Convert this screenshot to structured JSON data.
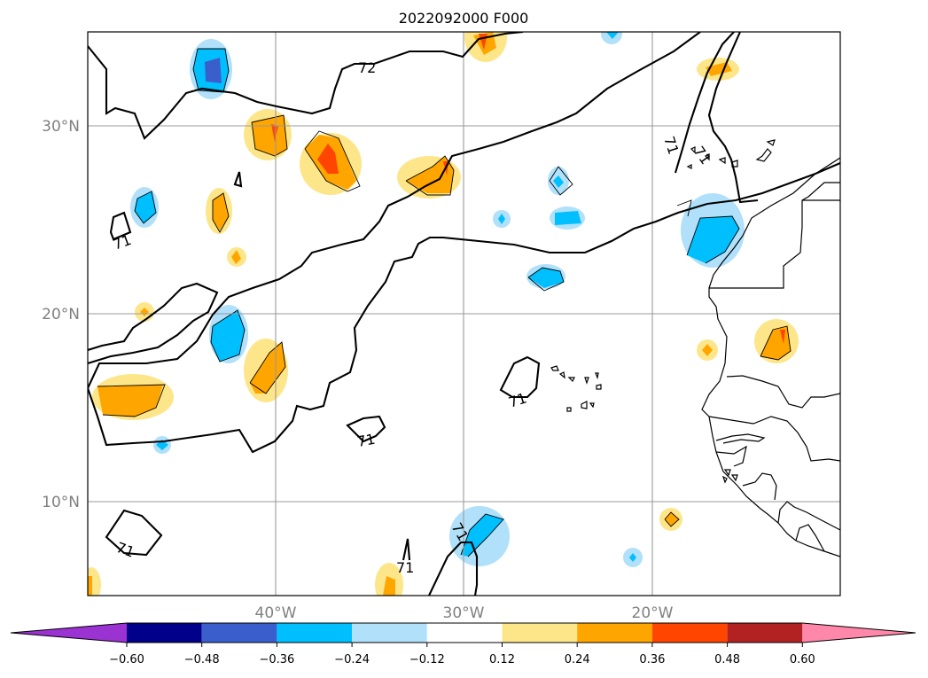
{
  "title": "2022092000 F000",
  "lat_labels": [
    "30°N",
    "20°N",
    "10°N"
  ],
  "lon_labels": [
    "40°W",
    "30°W",
    "20°W"
  ],
  "contour_labels": [
    "72",
    "71",
    "71",
    "71",
    "71",
    "71",
    "71",
    "71",
    "71"
  ],
  "colorbar": {
    "ticks": [
      "−0.60",
      "−0.48",
      "−0.36",
      "−0.24",
      "−0.12",
      "0.12",
      "0.24",
      "0.36",
      "0.48",
      "0.60"
    ],
    "colors": [
      "#9b32d2",
      "#00008b",
      "#3a5fcd",
      "#00bfff",
      "#b0e0fa",
      "#ffffff",
      "#fde68a",
      "#ffa500",
      "#ff4500",
      "#b22222",
      "#ff88aa"
    ]
  },
  "anomaly_colors": {
    "light_blue": "#b0e0fa",
    "blue": "#00bfff",
    "dark_blue": "#3a5fcd",
    "light_yellow": "#fde68a",
    "orange": "#ffa500",
    "red_orange": "#ff4500"
  }
}
